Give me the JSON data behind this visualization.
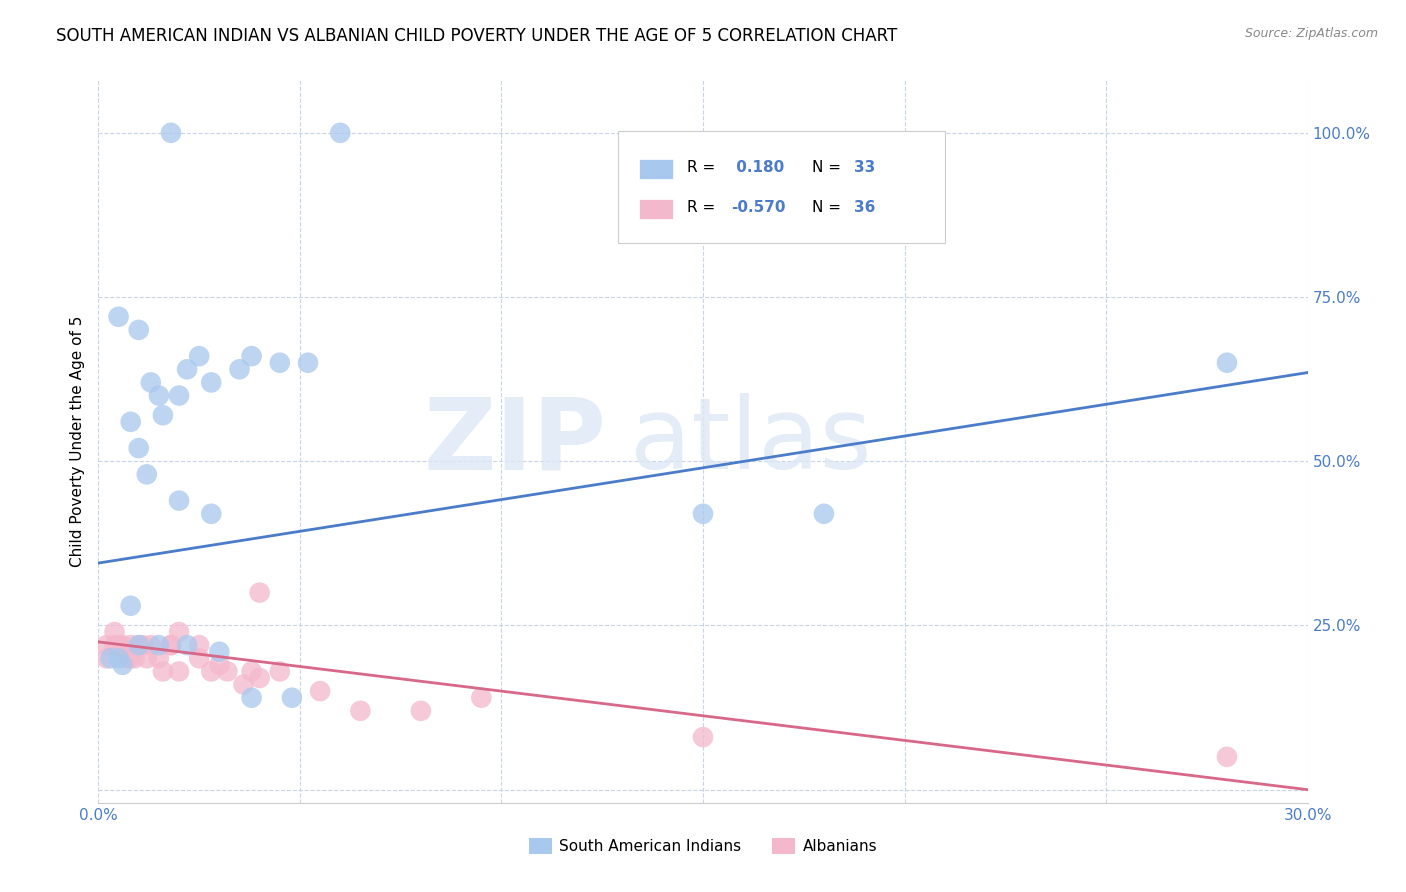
{
  "title": "SOUTH AMERICAN INDIAN VS ALBANIAN CHILD POVERTY UNDER THE AGE OF 5 CORRELATION CHART",
  "source": "Source: ZipAtlas.com",
  "ylabel": "Child Poverty Under the Age of 5",
  "xlim": [
    0.0,
    0.3
  ],
  "ylim": [
    -0.02,
    1.08
  ],
  "xticks": [
    0.0,
    0.05,
    0.1,
    0.15,
    0.2,
    0.25,
    0.3
  ],
  "xticklabels": [
    "0.0%",
    "",
    "",
    "",
    "",
    "",
    "30.0%"
  ],
  "yticks": [
    0.0,
    0.25,
    0.5,
    0.75,
    1.0
  ],
  "yticklabels": [
    "",
    "25.0%",
    "50.0%",
    "75.0%",
    "100.0%"
  ],
  "blue_color": "#a8c8ee",
  "pink_color": "#f4b8cc",
  "blue_line_color": "#4a7cc9",
  "pink_line_color": "#d86888",
  "watermark_zip": "ZIP",
  "watermark_atlas": "atlas",
  "legend_label_blue": "South American Indians",
  "legend_label_pink": "Albanians",
  "blue_scatter_x": [
    0.005,
    0.01,
    0.013,
    0.016,
    0.02,
    0.025,
    0.01,
    0.015,
    0.018,
    0.022,
    0.005,
    0.008,
    0.012,
    0.02,
    0.028,
    0.035,
    0.028,
    0.038,
    0.045,
    0.052,
    0.06,
    0.008,
    0.003,
    0.006,
    0.01,
    0.015,
    0.022,
    0.03,
    0.038,
    0.048,
    0.15,
    0.28,
    0.18
  ],
  "blue_scatter_y": [
    0.2,
    0.7,
    0.62,
    0.57,
    0.6,
    0.66,
    0.52,
    0.6,
    1.0,
    0.64,
    0.72,
    0.56,
    0.48,
    0.44,
    0.42,
    0.64,
    0.62,
    0.66,
    0.65,
    0.65,
    1.0,
    0.28,
    0.2,
    0.19,
    0.22,
    0.22,
    0.22,
    0.21,
    0.14,
    0.14,
    0.42,
    0.65,
    0.42
  ],
  "pink_scatter_x": [
    0.002,
    0.004,
    0.006,
    0.008,
    0.01,
    0.002,
    0.005,
    0.007,
    0.009,
    0.011,
    0.013,
    0.015,
    0.018,
    0.02,
    0.004,
    0.008,
    0.012,
    0.016,
    0.02,
    0.025,
    0.028,
    0.032,
    0.036,
    0.04,
    0.018,
    0.025,
    0.03,
    0.038,
    0.045,
    0.055,
    0.065,
    0.08,
    0.04,
    0.15,
    0.28,
    0.095
  ],
  "pink_scatter_y": [
    0.22,
    0.24,
    0.22,
    0.2,
    0.22,
    0.2,
    0.22,
    0.2,
    0.2,
    0.22,
    0.22,
    0.2,
    0.22,
    0.24,
    0.22,
    0.22,
    0.2,
    0.18,
    0.18,
    0.22,
    0.18,
    0.18,
    0.16,
    0.3,
    0.22,
    0.2,
    0.19,
    0.18,
    0.18,
    0.15,
    0.12,
    0.12,
    0.17,
    0.08,
    0.05,
    0.14
  ],
  "blue_line_x": [
    0.0,
    0.3
  ],
  "blue_line_y": [
    0.345,
    0.635
  ],
  "pink_line_x": [
    0.0,
    0.3
  ],
  "pink_line_y": [
    0.225,
    0.0
  ],
  "background_color": "#ffffff",
  "grid_color": "#c8d4e8",
  "title_fontsize": 12,
  "axis_label_fontsize": 11,
  "tick_fontsize": 11,
  "tick_color": "#4a7cc9"
}
